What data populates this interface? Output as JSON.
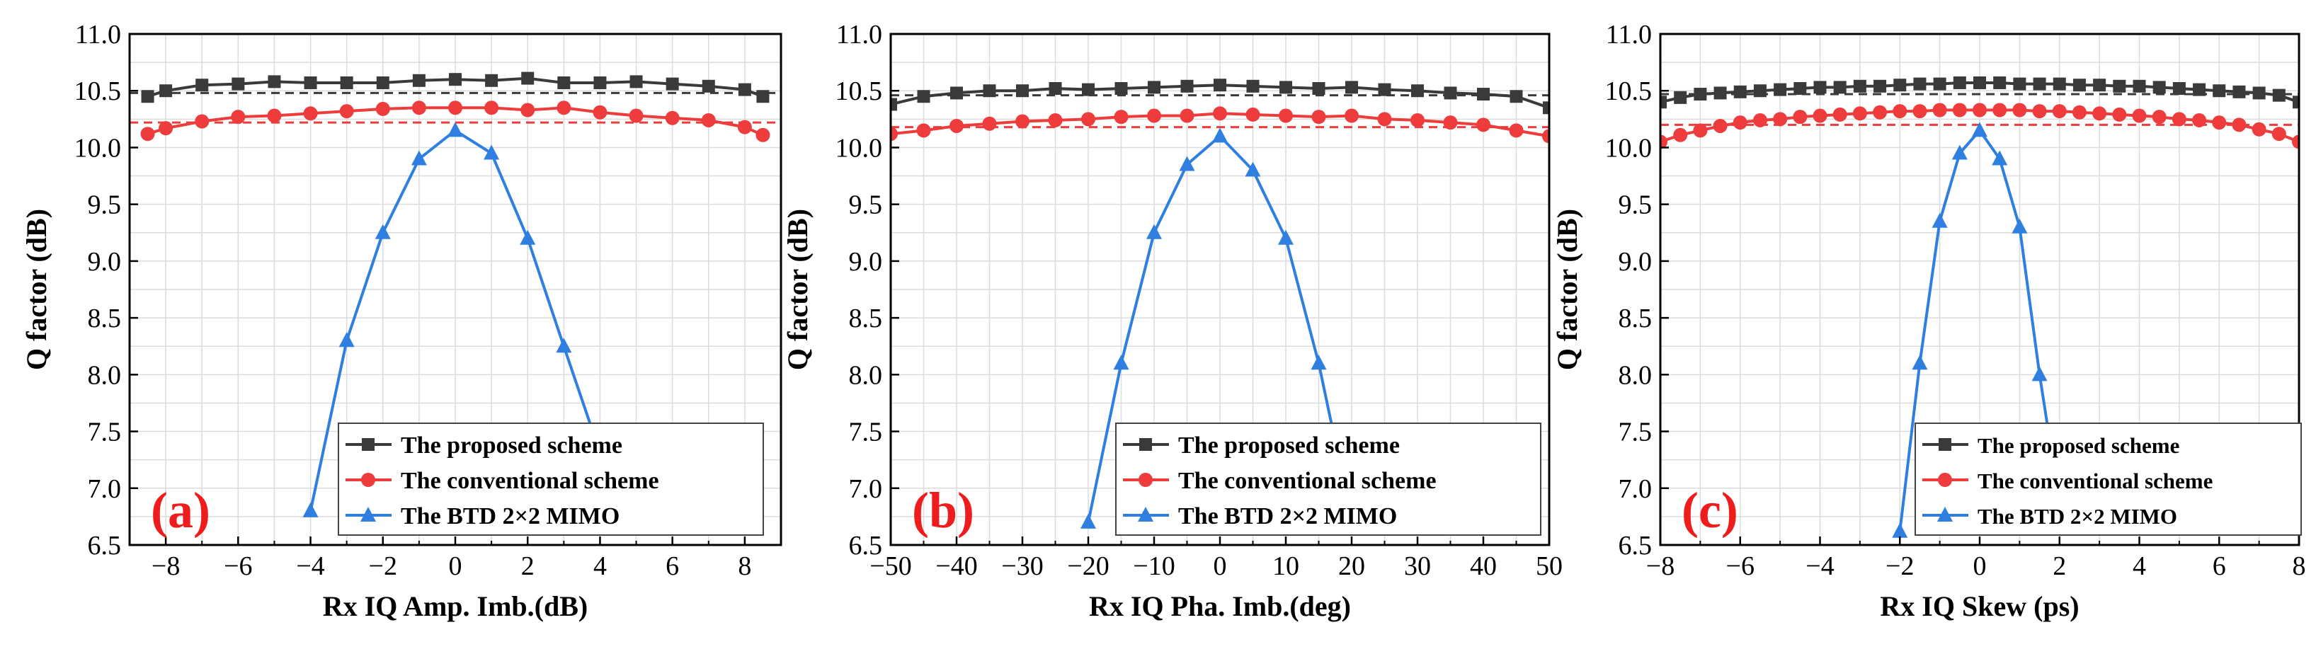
{
  "figure": {
    "legend_labels": [
      "The proposed scheme",
      "The conventional scheme",
      "The BTD 2×2 MIMO"
    ],
    "colors": {
      "proposed": "#3a3a3a",
      "conventional": "#ee3b3b",
      "btd": "#2e7fe0",
      "grid": "#dcdcdc",
      "panel_label": "#ee1c1c"
    }
  },
  "chart_data": [
    {
      "type": "line",
      "panel_label": "(a)",
      "xlabel": "Rx IQ Amp. Imb.(dB)",
      "ylabel": "Q factor (dB)",
      "xlim": [
        -9,
        9
      ],
      "ylim": [
        6.5,
        11.0
      ],
      "xticks": [
        -8,
        -6,
        -4,
        -2,
        0,
        2,
        4,
        6,
        8
      ],
      "xtick_labels": [
        "−8",
        "−6",
        "−4",
        "−2",
        "0",
        "2",
        "4",
        "6",
        "8"
      ],
      "yticks": [
        6.5,
        7.0,
        7.5,
        8.0,
        8.5,
        9.0,
        9.5,
        10.0,
        10.5,
        11.0
      ],
      "ytick_labels": [
        "6.5",
        "7.0",
        "7.5",
        "8.0",
        "8.5",
        "9.0",
        "9.5",
        "10.0",
        "10.5",
        "11.0"
      ],
      "xminor": [
        -9,
        -8,
        -7,
        -6,
        -5,
        -4,
        -3,
        -2,
        -1,
        0,
        1,
        2,
        3,
        4,
        5,
        6,
        7,
        8,
        9
      ],
      "reference_lines": [
        {
          "series": "proposed",
          "y": 10.48
        },
        {
          "series": "conventional",
          "y": 10.22
        }
      ],
      "series": [
        {
          "key": "proposed",
          "name": "The proposed scheme",
          "marker": "square",
          "x": [
            -8.5,
            -8,
            -7,
            -6,
            -5,
            -4,
            -3,
            -2,
            -1,
            0,
            1,
            2,
            3,
            4,
            5,
            6,
            7,
            8,
            8.5
          ],
          "y": [
            10.45,
            10.5,
            10.55,
            10.56,
            10.58,
            10.57,
            10.57,
            10.57,
            10.59,
            10.6,
            10.59,
            10.61,
            10.57,
            10.57,
            10.58,
            10.56,
            10.54,
            10.51,
            10.45
          ]
        },
        {
          "key": "conventional",
          "name": "The conventional scheme",
          "marker": "circle",
          "x": [
            -8.5,
            -8,
            -7,
            -6,
            -5,
            -4,
            -3,
            -2,
            -1,
            0,
            1,
            2,
            3,
            4,
            5,
            6,
            7,
            8,
            8.5
          ],
          "y": [
            10.12,
            10.17,
            10.23,
            10.27,
            10.28,
            10.3,
            10.32,
            10.34,
            10.35,
            10.35,
            10.35,
            10.33,
            10.35,
            10.31,
            10.28,
            10.26,
            10.24,
            10.18,
            10.11
          ]
        },
        {
          "key": "btd",
          "name": "The BTD 2×2 MIMO",
          "marker": "triangle",
          "x": [
            -4,
            -3,
            -2,
            -1,
            0,
            1,
            2,
            3,
            3.8
          ],
          "y": [
            6.8,
            8.3,
            9.25,
            9.9,
            10.15,
            9.95,
            9.2,
            8.25,
            7.5
          ]
        }
      ]
    },
    {
      "type": "line",
      "panel_label": "(b)",
      "xlabel": "Rx IQ Pha. Imb.(deg)",
      "ylabel": "Q factor (dB)",
      "xlim": [
        -50,
        50
      ],
      "ylim": [
        6.5,
        11.0
      ],
      "xticks": [
        -50,
        -40,
        -30,
        -20,
        -10,
        0,
        10,
        20,
        30,
        40,
        50
      ],
      "xtick_labels": [
        "−50",
        "−40",
        "−30",
        "−20",
        "−10",
        "0",
        "10",
        "20",
        "30",
        "40",
        "50"
      ],
      "yticks": [
        6.5,
        7.0,
        7.5,
        8.0,
        8.5,
        9.0,
        9.5,
        10.0,
        10.5,
        11.0
      ],
      "ytick_labels": [
        "6.5",
        "7.0",
        "7.5",
        "8.0",
        "8.5",
        "9.0",
        "9.5",
        "10.0",
        "10.5",
        "11.0"
      ],
      "xminor": [
        -50,
        -45,
        -40,
        -35,
        -30,
        -25,
        -20,
        -15,
        -10,
        -5,
        0,
        5,
        10,
        15,
        20,
        25,
        30,
        35,
        40,
        45,
        50
      ],
      "reference_lines": [
        {
          "series": "proposed",
          "y": 10.46
        },
        {
          "series": "conventional",
          "y": 10.18
        }
      ],
      "series": [
        {
          "key": "proposed",
          "name": "The proposed scheme",
          "marker": "square",
          "x": [
            -50,
            -45,
            -40,
            -35,
            -30,
            -25,
            -20,
            -15,
            -10,
            -5,
            0,
            5,
            10,
            15,
            20,
            25,
            30,
            35,
            40,
            45,
            50
          ],
          "y": [
            10.38,
            10.45,
            10.48,
            10.5,
            10.5,
            10.52,
            10.51,
            10.52,
            10.53,
            10.54,
            10.55,
            10.54,
            10.53,
            10.52,
            10.53,
            10.51,
            10.5,
            10.48,
            10.47,
            10.45,
            10.35
          ]
        },
        {
          "key": "conventional",
          "name": "The conventional scheme",
          "marker": "circle",
          "x": [
            -50,
            -45,
            -40,
            -35,
            -30,
            -25,
            -20,
            -15,
            -10,
            -5,
            0,
            5,
            10,
            15,
            20,
            25,
            30,
            35,
            40,
            45,
            50
          ],
          "y": [
            10.12,
            10.15,
            10.19,
            10.21,
            10.23,
            10.24,
            10.25,
            10.27,
            10.28,
            10.28,
            10.3,
            10.29,
            10.28,
            10.27,
            10.28,
            10.25,
            10.24,
            10.22,
            10.2,
            10.15,
            10.1
          ]
        },
        {
          "key": "btd",
          "name": "The BTD 2×2 MIMO",
          "marker": "triangle",
          "x": [
            -20,
            -15,
            -10,
            -5,
            0,
            5,
            10,
            15,
            17
          ],
          "y": [
            6.7,
            8.1,
            9.25,
            9.85,
            10.1,
            9.8,
            9.2,
            8.1,
            7.55
          ]
        }
      ]
    },
    {
      "type": "line",
      "panel_label": "(c)",
      "xlabel": "Rx IQ Skew (ps)",
      "ylabel": "Q factor (dB)",
      "xlim": [
        -8,
        8
      ],
      "ylim": [
        6.5,
        11.0
      ],
      "xticks": [
        -8,
        -6,
        -4,
        -2,
        0,
        2,
        4,
        6,
        8
      ],
      "xtick_labels": [
        "−8",
        "−6",
        "−4",
        "−2",
        "0",
        "2",
        "4",
        "6",
        "8"
      ],
      "yticks": [
        6.5,
        7.0,
        7.5,
        8.0,
        8.5,
        9.0,
        9.5,
        10.0,
        10.5,
        11.0
      ],
      "ytick_labels": [
        "6.5",
        "7.0",
        "7.5",
        "8.0",
        "8.5",
        "9.0",
        "9.5",
        "10.0",
        "10.5",
        "11.0"
      ],
      "xminor": [
        -8,
        -7,
        -6,
        -5,
        -4,
        -3,
        -2,
        -1,
        0,
        1,
        2,
        3,
        4,
        5,
        6,
        7,
        8
      ],
      "reference_lines": [
        {
          "series": "proposed",
          "y": 10.47
        },
        {
          "series": "conventional",
          "y": 10.2
        }
      ],
      "series": [
        {
          "key": "proposed",
          "name": "The proposed scheme",
          "marker": "square",
          "x": [
            -8,
            -7.5,
            -7,
            -6.5,
            -6,
            -5.5,
            -5,
            -4.5,
            -4,
            -3.5,
            -3,
            -2.5,
            -2,
            -1.5,
            -1,
            -0.5,
            0,
            0.5,
            1,
            1.5,
            2,
            2.5,
            3,
            3.5,
            4,
            4.5,
            5,
            5.5,
            6,
            6.5,
            7,
            7.5,
            8
          ],
          "y": [
            10.4,
            10.44,
            10.47,
            10.48,
            10.49,
            10.5,
            10.51,
            10.52,
            10.53,
            10.53,
            10.54,
            10.54,
            10.55,
            10.56,
            10.56,
            10.57,
            10.57,
            10.57,
            10.56,
            10.56,
            10.56,
            10.55,
            10.55,
            10.54,
            10.54,
            10.53,
            10.52,
            10.51,
            10.5,
            10.49,
            10.48,
            10.46,
            10.4
          ]
        },
        {
          "key": "conventional",
          "name": "The conventional scheme",
          "marker": "circle",
          "x": [
            -8,
            -7.5,
            -7,
            -6.5,
            -6,
            -5.5,
            -5,
            -4.5,
            -4,
            -3.5,
            -3,
            -2.5,
            -2,
            -1.5,
            -1,
            -0.5,
            0,
            0.5,
            1,
            1.5,
            2,
            2.5,
            3,
            3.5,
            4,
            4.5,
            5,
            5.5,
            6,
            6.5,
            7,
            7.5,
            8
          ],
          "y": [
            10.05,
            10.11,
            10.15,
            10.19,
            10.22,
            10.24,
            10.25,
            10.27,
            10.28,
            10.29,
            10.3,
            10.31,
            10.32,
            10.32,
            10.33,
            10.33,
            10.33,
            10.33,
            10.33,
            10.32,
            10.32,
            10.31,
            10.3,
            10.29,
            10.28,
            10.27,
            10.25,
            10.24,
            10.22,
            10.2,
            10.16,
            10.12,
            10.05
          ]
        },
        {
          "key": "btd",
          "name": "The BTD 2×2 MIMO",
          "marker": "triangle",
          "x": [
            -2,
            -1.5,
            -1,
            -0.5,
            0,
            0.5,
            1,
            1.5,
            1.7
          ],
          "y": [
            6.62,
            8.1,
            9.35,
            9.95,
            10.15,
            9.9,
            9.3,
            8.0,
            7.55
          ]
        }
      ]
    }
  ]
}
